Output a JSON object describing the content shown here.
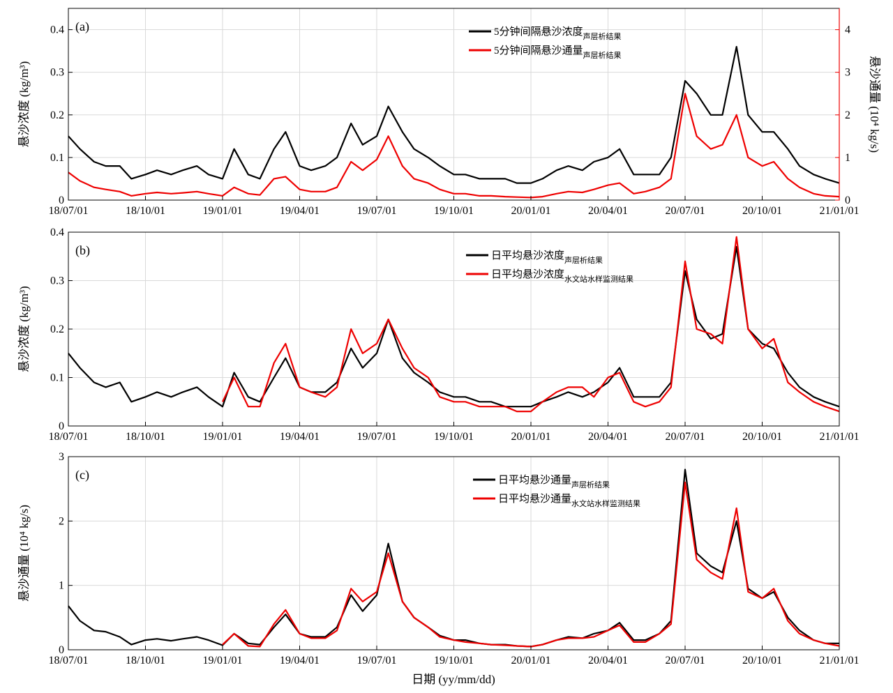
{
  "xlabel": "日期 (yy/mm/dd)",
  "x_ticks": [
    "18/07/01",
    "18/10/01",
    "19/01/01",
    "19/04/01",
    "19/07/01",
    "19/10/01",
    "20/01/01",
    "20/04/01",
    "20/07/01",
    "20/10/01",
    "21/01/01"
  ],
  "colors": {
    "black": "#000000",
    "red": "#ee0000"
  },
  "chart_data": [
    {
      "type": "line",
      "panel_label": "(a)",
      "ylabel": "悬沙浓度 (kg/m³)",
      "ylabel_right": "悬沙通量 (10⁴ kg/s)",
      "ylim": [
        0,
        0.45
      ],
      "yticks": [
        0,
        0.1,
        0.2,
        0.3,
        0.4
      ],
      "ylim_right": [
        0,
        4.5
      ],
      "yticks_right": [
        0,
        1,
        2,
        3,
        4
      ],
      "legend_position": "top-right",
      "series": [
        {
          "name": "5分钟间隔悬沙浓度",
          "name_sub": "声层析结果",
          "color": "#000000",
          "axis": "left",
          "x": [
            "18/07/01",
            "18/07/15",
            "18/08/01",
            "18/08/15",
            "18/09/01",
            "18/09/15",
            "18/10/01",
            "18/10/15",
            "18/11/01",
            "18/11/15",
            "18/12/01",
            "18/12/15",
            "19/01/01",
            "19/01/15",
            "19/02/01",
            "19/02/15",
            "19/03/01",
            "19/03/15",
            "19/04/01",
            "19/04/15",
            "19/05/01",
            "19/05/15",
            "19/06/01",
            "19/06/15",
            "19/07/01",
            "19/07/15",
            "19/08/01",
            "19/08/15",
            "19/09/01",
            "19/09/15",
            "19/10/01",
            "19/10/15",
            "19/11/01",
            "19/11/15",
            "19/12/01",
            "19/12/15",
            "20/01/01",
            "20/01/15",
            "20/02/01",
            "20/02/15",
            "20/03/01",
            "20/03/15",
            "20/04/01",
            "20/04/15",
            "20/05/01",
            "20/05/15",
            "20/06/01",
            "20/06/15",
            "20/07/01",
            "20/07/15",
            "20/08/01",
            "20/08/15",
            "20/09/01",
            "20/09/15",
            "20/10/01",
            "20/10/15",
            "20/11/01",
            "20/11/15",
            "20/12/01",
            "20/12/15",
            "21/01/01"
          ],
          "y": [
            0.15,
            0.12,
            0.09,
            0.08,
            0.08,
            0.05,
            0.06,
            0.07,
            0.06,
            0.07,
            0.08,
            0.06,
            0.05,
            0.12,
            0.06,
            0.05,
            0.12,
            0.16,
            0.08,
            0.07,
            0.08,
            0.1,
            0.18,
            0.13,
            0.15,
            0.22,
            0.16,
            0.12,
            0.1,
            0.08,
            0.06,
            0.06,
            0.05,
            0.05,
            0.05,
            0.04,
            0.04,
            0.05,
            0.07,
            0.08,
            0.07,
            0.09,
            0.1,
            0.12,
            0.06,
            0.06,
            0.06,
            0.1,
            0.28,
            0.25,
            0.2,
            0.2,
            0.36,
            0.2,
            0.16,
            0.16,
            0.12,
            0.08,
            0.06,
            0.05,
            0.04
          ]
        },
        {
          "name": "5分钟间隔悬沙通量",
          "name_sub": "声层析结果",
          "color": "#ee0000",
          "axis": "right",
          "x": [
            "18/07/01",
            "18/07/15",
            "18/08/01",
            "18/08/15",
            "18/09/01",
            "18/09/15",
            "18/10/01",
            "18/10/15",
            "18/11/01",
            "18/11/15",
            "18/12/01",
            "18/12/15",
            "19/01/01",
            "19/01/15",
            "19/02/01",
            "19/02/15",
            "19/03/01",
            "19/03/15",
            "19/04/01",
            "19/04/15",
            "19/05/01",
            "19/05/15",
            "19/06/01",
            "19/06/15",
            "19/07/01",
            "19/07/15",
            "19/08/01",
            "19/08/15",
            "19/09/01",
            "19/09/15",
            "19/10/01",
            "19/10/15",
            "19/11/01",
            "19/11/15",
            "19/12/01",
            "19/12/15",
            "20/01/01",
            "20/01/15",
            "20/02/01",
            "20/02/15",
            "20/03/01",
            "20/03/15",
            "20/04/01",
            "20/04/15",
            "20/05/01",
            "20/05/15",
            "20/06/01",
            "20/06/15",
            "20/07/01",
            "20/07/15",
            "20/08/01",
            "20/08/15",
            "20/09/01",
            "20/09/15",
            "20/10/01",
            "20/10/15",
            "20/11/01",
            "20/11/15",
            "20/12/01",
            "20/12/15",
            "21/01/01"
          ],
          "y": [
            0.65,
            0.45,
            0.3,
            0.25,
            0.2,
            0.1,
            0.15,
            0.18,
            0.15,
            0.17,
            0.2,
            0.15,
            0.1,
            0.3,
            0.15,
            0.12,
            0.5,
            0.55,
            0.25,
            0.2,
            0.2,
            0.3,
            0.9,
            0.7,
            0.95,
            1.5,
            0.8,
            0.5,
            0.4,
            0.25,
            0.15,
            0.15,
            0.1,
            0.1,
            0.08,
            0.07,
            0.06,
            0.08,
            0.15,
            0.2,
            0.18,
            0.25,
            0.35,
            0.4,
            0.15,
            0.2,
            0.3,
            0.5,
            2.5,
            1.5,
            1.2,
            1.3,
            2.0,
            1.0,
            0.8,
            0.9,
            0.5,
            0.3,
            0.15,
            0.1,
            0.08
          ]
        }
      ]
    },
    {
      "type": "line",
      "panel_label": "(b)",
      "ylabel": "悬沙浓度 (kg/m³)",
      "ylim": [
        0,
        0.4
      ],
      "yticks": [
        0,
        0.1,
        0.2,
        0.3,
        0.4
      ],
      "legend_position": "top-right",
      "series": [
        {
          "name": "日平均悬沙浓度",
          "name_sub": "声层析结果",
          "color": "#000000",
          "x": [
            "18/07/01",
            "18/07/15",
            "18/08/01",
            "18/08/15",
            "18/09/01",
            "18/09/15",
            "18/10/01",
            "18/10/15",
            "18/11/01",
            "18/11/15",
            "18/12/01",
            "18/12/15",
            "19/01/01",
            "19/01/15",
            "19/02/01",
            "19/02/15",
            "19/03/01",
            "19/03/15",
            "19/04/01",
            "19/04/15",
            "19/05/01",
            "19/05/15",
            "19/06/01",
            "19/06/15",
            "19/07/01",
            "19/07/15",
            "19/08/01",
            "19/08/15",
            "19/09/01",
            "19/09/15",
            "19/10/01",
            "19/10/15",
            "19/11/01",
            "19/11/15",
            "19/12/01",
            "19/12/15",
            "20/01/01",
            "20/01/15",
            "20/02/01",
            "20/02/15",
            "20/03/01",
            "20/03/15",
            "20/04/01",
            "20/04/15",
            "20/05/01",
            "20/05/15",
            "20/06/01",
            "20/06/15",
            "20/07/01",
            "20/07/15",
            "20/08/01",
            "20/08/15",
            "20/09/01",
            "20/09/15",
            "20/10/01",
            "20/10/15",
            "20/11/01",
            "20/11/15",
            "20/12/01",
            "20/12/15",
            "21/01/01"
          ],
          "y": [
            0.15,
            0.12,
            0.09,
            0.08,
            0.09,
            0.05,
            0.06,
            0.07,
            0.06,
            0.07,
            0.08,
            0.06,
            0.04,
            0.11,
            0.06,
            0.05,
            0.1,
            0.14,
            0.08,
            0.07,
            0.07,
            0.09,
            0.16,
            0.12,
            0.15,
            0.22,
            0.14,
            0.11,
            0.09,
            0.07,
            0.06,
            0.06,
            0.05,
            0.05,
            0.04,
            0.04,
            0.04,
            0.05,
            0.06,
            0.07,
            0.06,
            0.07,
            0.09,
            0.12,
            0.06,
            0.06,
            0.06,
            0.09,
            0.32,
            0.22,
            0.18,
            0.19,
            0.37,
            0.2,
            0.17,
            0.16,
            0.11,
            0.08,
            0.06,
            0.05,
            0.04
          ]
        },
        {
          "name": "日平均悬沙浓度",
          "name_sub": "水文站水样监测结果",
          "color": "#ee0000",
          "x": [
            "19/01/01",
            "19/01/15",
            "19/02/01",
            "19/02/15",
            "19/03/01",
            "19/03/15",
            "19/04/01",
            "19/04/15",
            "19/05/01",
            "19/05/15",
            "19/06/01",
            "19/06/15",
            "19/07/01",
            "19/07/15",
            "19/08/01",
            "19/08/15",
            "19/09/01",
            "19/09/15",
            "19/10/01",
            "19/10/15",
            "19/11/01",
            "19/11/15",
            "19/12/01",
            "19/12/15",
            "20/01/01",
            "20/01/15",
            "20/02/01",
            "20/02/15",
            "20/03/01",
            "20/03/15",
            "20/04/01",
            "20/04/15",
            "20/05/01",
            "20/05/15",
            "20/06/01",
            "20/06/15",
            "20/07/01",
            "20/07/15",
            "20/08/01",
            "20/08/15",
            "20/09/01",
            "20/09/15",
            "20/10/01",
            "20/10/15",
            "20/11/01",
            "20/11/15",
            "20/12/01",
            "20/12/15",
            "21/01/01"
          ],
          "y": [
            0.05,
            0.1,
            0.04,
            0.04,
            0.13,
            0.17,
            0.08,
            0.07,
            0.06,
            0.08,
            0.2,
            0.15,
            0.17,
            0.22,
            0.16,
            0.12,
            0.1,
            0.06,
            0.05,
            0.05,
            0.04,
            0.04,
            0.04,
            0.03,
            0.03,
            0.05,
            0.07,
            0.08,
            0.08,
            0.06,
            0.1,
            0.11,
            0.05,
            0.04,
            0.05,
            0.08,
            0.34,
            0.2,
            0.19,
            0.17,
            0.39,
            0.2,
            0.16,
            0.18,
            0.09,
            0.07,
            0.05,
            0.04,
            0.03
          ]
        }
      ]
    },
    {
      "type": "line",
      "panel_label": "(c)",
      "ylabel": "悬沙通量 (10⁴ kg/s)",
      "ylim": [
        0,
        3
      ],
      "yticks": [
        0,
        1,
        2,
        3
      ],
      "legend_position": "top-right",
      "series": [
        {
          "name": "日平均悬沙通量",
          "name_sub": "声层析结果",
          "color": "#000000",
          "x": [
            "18/07/01",
            "18/07/15",
            "18/08/01",
            "18/08/15",
            "18/09/01",
            "18/09/15",
            "18/10/01",
            "18/10/15",
            "18/11/01",
            "18/11/15",
            "18/12/01",
            "18/12/15",
            "19/01/01",
            "19/01/15",
            "19/02/01",
            "19/02/15",
            "19/03/01",
            "19/03/15",
            "19/04/01",
            "19/04/15",
            "19/05/01",
            "19/05/15",
            "19/06/01",
            "19/06/15",
            "19/07/01",
            "19/07/15",
            "19/08/01",
            "19/08/15",
            "19/09/01",
            "19/09/15",
            "19/10/01",
            "19/10/15",
            "19/11/01",
            "19/11/15",
            "19/12/01",
            "19/12/15",
            "20/01/01",
            "20/01/15",
            "20/02/01",
            "20/02/15",
            "20/03/01",
            "20/03/15",
            "20/04/01",
            "20/04/15",
            "20/05/01",
            "20/05/15",
            "20/06/01",
            "20/06/15",
            "20/07/01",
            "20/07/15",
            "20/08/01",
            "20/08/15",
            "20/09/01",
            "20/09/15",
            "20/10/01",
            "20/10/15",
            "20/11/01",
            "20/11/15",
            "20/12/01",
            "20/12/15",
            "21/01/01"
          ],
          "y": [
            0.68,
            0.45,
            0.3,
            0.28,
            0.2,
            0.08,
            0.15,
            0.17,
            0.14,
            0.17,
            0.2,
            0.15,
            0.07,
            0.25,
            0.1,
            0.08,
            0.35,
            0.55,
            0.25,
            0.2,
            0.2,
            0.35,
            0.85,
            0.6,
            0.85,
            1.65,
            0.75,
            0.5,
            0.35,
            0.22,
            0.15,
            0.15,
            0.1,
            0.08,
            0.08,
            0.06,
            0.05,
            0.08,
            0.15,
            0.2,
            0.18,
            0.25,
            0.3,
            0.42,
            0.15,
            0.15,
            0.25,
            0.45,
            2.8,
            1.5,
            1.3,
            1.2,
            2.0,
            0.95,
            0.8,
            0.9,
            0.5,
            0.3,
            0.15,
            0.1,
            0.1
          ]
        },
        {
          "name": "日平均悬沙通量",
          "name_sub": "水文站水样监测结果",
          "color": "#ee0000",
          "x": [
            "19/01/01",
            "19/01/15",
            "19/02/01",
            "19/02/15",
            "19/03/01",
            "19/03/15",
            "19/04/01",
            "19/04/15",
            "19/05/01",
            "19/05/15",
            "19/06/01",
            "19/06/15",
            "19/07/01",
            "19/07/15",
            "19/08/01",
            "19/08/15",
            "19/09/01",
            "19/09/15",
            "19/10/01",
            "19/10/15",
            "19/11/01",
            "19/11/15",
            "19/12/01",
            "19/12/15",
            "20/01/01",
            "20/01/15",
            "20/02/01",
            "20/02/15",
            "20/03/01",
            "20/03/15",
            "20/04/01",
            "20/04/15",
            "20/05/01",
            "20/05/15",
            "20/06/01",
            "20/06/15",
            "20/07/01",
            "20/07/15",
            "20/08/01",
            "20/08/15",
            "20/09/01",
            "20/09/15",
            "20/10/01",
            "20/10/15",
            "20/11/01",
            "20/11/15",
            "20/12/01",
            "20/12/15",
            "21/01/01"
          ],
          "y": [
            0.08,
            0.25,
            0.06,
            0.05,
            0.4,
            0.62,
            0.25,
            0.18,
            0.18,
            0.3,
            0.95,
            0.75,
            0.9,
            1.5,
            0.75,
            0.5,
            0.35,
            0.2,
            0.15,
            0.12,
            0.1,
            0.08,
            0.07,
            0.06,
            0.05,
            0.08,
            0.15,
            0.18,
            0.18,
            0.2,
            0.3,
            0.38,
            0.12,
            0.12,
            0.25,
            0.4,
            2.6,
            1.4,
            1.2,
            1.1,
            2.2,
            0.9,
            0.8,
            0.95,
            0.45,
            0.25,
            0.15,
            0.1,
            0.06
          ]
        }
      ]
    }
  ]
}
